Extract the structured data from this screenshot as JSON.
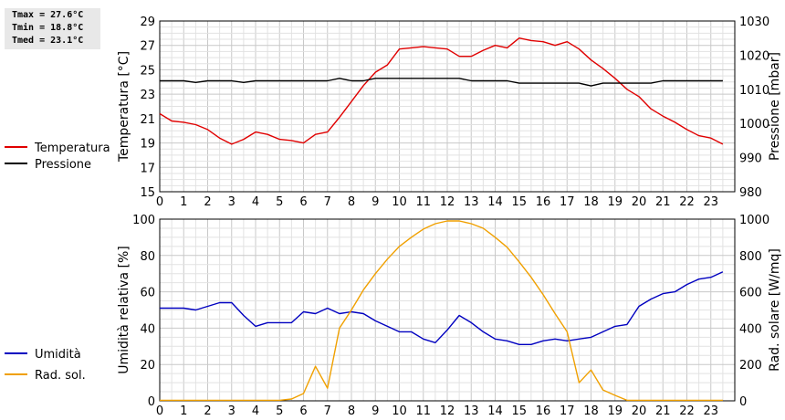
{
  "stats": {
    "tmax": "Tmax = 27.6°C",
    "tmin": "Tmin = 18.8°C",
    "tmed": "Tmed = 23.1°C"
  },
  "chart_data": [
    {
      "type": "line",
      "x_ticks": [
        "0",
        "1",
        "2",
        "3",
        "4",
        "5",
        "6",
        "7",
        "8",
        "9",
        "10",
        "11",
        "12",
        "13",
        "14",
        "15",
        "16",
        "17",
        "18",
        "19",
        "20",
        "21",
        "22",
        "23"
      ],
      "xlim": [
        0,
        24
      ],
      "ylabel_left": "Temperatura [°C]",
      "ylim_left": [
        15,
        29
      ],
      "yticks_left": [
        "15",
        "17",
        "19",
        "21",
        "23",
        "25",
        "27",
        "29"
      ],
      "ylabel_right": "Pressione [mbar]",
      "ylim_right": [
        980,
        1030
      ],
      "yticks_right": [
        "980",
        "990",
        "1000",
        "1010",
        "1020",
        "1030"
      ],
      "grid": true,
      "legend_position": "left",
      "series": [
        {
          "name": "Temperatura",
          "color": "#e00000",
          "axis": "left",
          "x": [
            0,
            0.5,
            1,
            1.5,
            2,
            2.5,
            3,
            3.5,
            4,
            4.5,
            5,
            5.5,
            6,
            6.5,
            7,
            7.5,
            8,
            8.5,
            9,
            9.5,
            10,
            10.5,
            11,
            11.5,
            12,
            12.5,
            13,
            13.5,
            14,
            14.5,
            15,
            15.5,
            16,
            16.5,
            17,
            17.5,
            18,
            18.5,
            19,
            19.5,
            20,
            20.5,
            21,
            21.5,
            22,
            22.5,
            23,
            23.5
          ],
          "values": [
            21.4,
            20.8,
            20.7,
            20.5,
            20.1,
            19.4,
            18.9,
            19.3,
            19.9,
            19.7,
            19.3,
            19.2,
            19.0,
            19.7,
            19.9,
            21.1,
            22.4,
            23.7,
            24.8,
            25.4,
            26.7,
            26.8,
            26.9,
            26.8,
            26.7,
            26.1,
            26.1,
            26.6,
            27.0,
            26.8,
            27.6,
            27.4,
            27.3,
            27.0,
            27.3,
            26.7,
            25.8,
            25.1,
            24.3,
            23.4,
            22.8,
            21.8,
            21.2,
            20.7,
            20.1,
            19.6,
            19.4,
            18.9
          ]
        },
        {
          "name": "Pressione",
          "color": "#000000",
          "axis": "right",
          "x": [
            0,
            1,
            1.5,
            2,
            3,
            3.5,
            4,
            7,
            7.5,
            8,
            8.5,
            9,
            9.5,
            10,
            12.5,
            13,
            14.5,
            15,
            17.5,
            18,
            18.5,
            20.5,
            21,
            23.5
          ],
          "values": [
            1012.5,
            1012.5,
            1012.0,
            1012.5,
            1012.5,
            1012.0,
            1012.5,
            1012.5,
            1013.2,
            1012.5,
            1012.5,
            1013.2,
            1013.2,
            1013.2,
            1013.2,
            1012.5,
            1012.5,
            1011.8,
            1011.8,
            1011.0,
            1011.8,
            1011.8,
            1012.5,
            1012.5
          ]
        }
      ]
    },
    {
      "type": "line",
      "x_ticks": [
        "0",
        "1",
        "2",
        "3",
        "4",
        "5",
        "6",
        "7",
        "8",
        "9",
        "10",
        "11",
        "12",
        "13",
        "14",
        "15",
        "16",
        "17",
        "18",
        "19",
        "20",
        "21",
        "22",
        "23"
      ],
      "xlim": [
        0,
        24
      ],
      "ylabel_left": "Umidità relativa [%]",
      "ylim_left": [
        0,
        100
      ],
      "yticks_left": [
        "0",
        "20",
        "40",
        "60",
        "80",
        "100"
      ],
      "ylabel_right": "Rad. solare [W/mq]",
      "ylim_right": [
        0,
        1000
      ],
      "yticks_right": [
        "0",
        "200",
        "400",
        "600",
        "800",
        "1000"
      ],
      "grid": true,
      "legend_position": "left",
      "series": [
        {
          "name": "Umidità",
          "color": "#0000c0",
          "axis": "left",
          "x": [
            0,
            1,
            1.5,
            2,
            2.5,
            3,
            3.5,
            4,
            4.5,
            5,
            5.5,
            6,
            6.5,
            7,
            7.5,
            8,
            8.5,
            9,
            9.5,
            10,
            10.5,
            11,
            11.5,
            12,
            12.5,
            13,
            13.5,
            14,
            14.5,
            15,
            15.5,
            16,
            16.5,
            17,
            17.5,
            18,
            18.5,
            19,
            19.5,
            20,
            20.5,
            21,
            21.5,
            22,
            22.5,
            23,
            23.5
          ],
          "values": [
            51,
            51,
            50,
            52,
            54,
            54,
            47,
            41,
            43,
            43,
            43,
            49,
            48,
            51,
            48,
            49,
            48,
            44,
            41,
            38,
            38,
            34,
            32,
            39,
            47,
            43,
            38,
            34,
            33,
            31,
            31,
            33,
            34,
            33,
            34,
            35,
            38,
            41,
            42,
            52,
            56,
            59,
            60,
            64,
            67,
            68,
            71
          ]
        },
        {
          "name": "Rad. sol.",
          "color": "#f0a000",
          "axis": "right",
          "x": [
            0,
            1,
            2,
            3,
            4,
            4.5,
            5,
            5.5,
            6,
            6.5,
            7,
            7.5,
            8,
            8.5,
            9,
            9.5,
            10,
            10.5,
            11,
            11.5,
            12,
            12.5,
            13,
            13.5,
            14,
            14.5,
            15,
            15.5,
            16,
            16.5,
            17,
            17.5,
            18,
            18.5,
            19,
            19.5,
            20,
            21,
            22,
            23,
            23.5
          ],
          "values": [
            3,
            3,
            3,
            3,
            3,
            3,
            3,
            10,
            40,
            190,
            70,
            400,
            500,
            610,
            700,
            780,
            850,
            900,
            945,
            975,
            990,
            990,
            975,
            950,
            900,
            845,
            765,
            680,
            585,
            480,
            380,
            100,
            170,
            60,
            30,
            3,
            3,
            3,
            3,
            3,
            3
          ]
        }
      ]
    }
  ]
}
